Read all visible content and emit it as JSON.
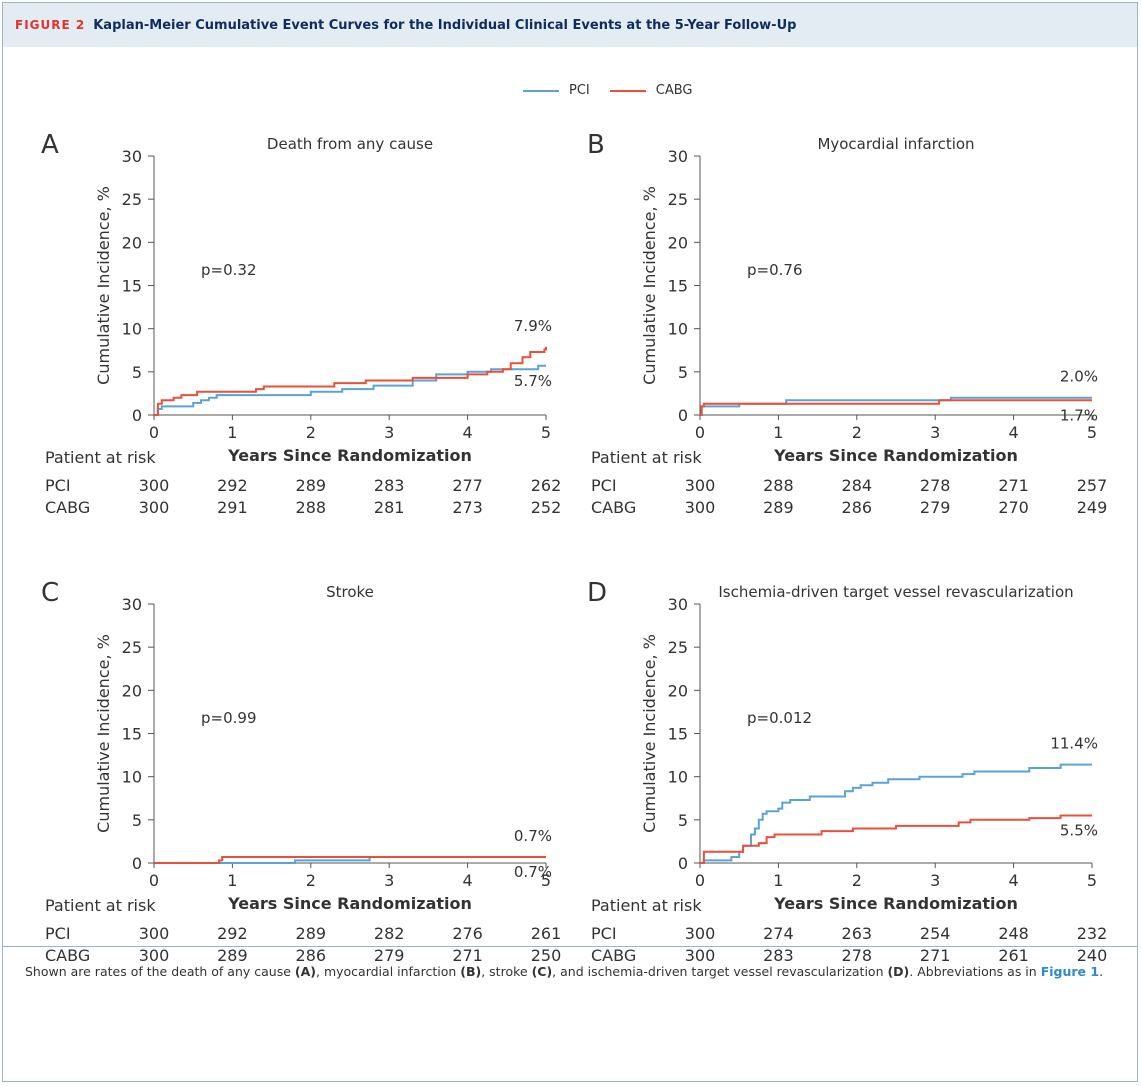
{
  "header": {
    "label": "FIGURE 2",
    "title": "Kaplan-Meier Cumulative Event Curves for the Individual Clinical Events at the 5-Year Follow-Up"
  },
  "legend": [
    {
      "name": "PCI",
      "color": "#5aa3d8"
    },
    {
      "name": "CABG",
      "color": "#e8503a"
    }
  ],
  "colors": {
    "pci": "#5aa3d8",
    "cabg": "#e8503a",
    "axis": "#555555"
  },
  "risk_labels": {
    "heading": "Patient at risk",
    "pci": "PCI",
    "cabg": "CABG"
  },
  "chart_data": [
    {
      "type": "line",
      "letter": "A",
      "title": "Death from any cause",
      "xlabel": "Years Since Randomization",
      "ylabel": "Cumulative Incidence, %",
      "xlim": [
        0,
        5
      ],
      "ylim": [
        0,
        30
      ],
      "xticks": [
        0,
        1,
        2,
        3,
        4,
        5
      ],
      "yticks": [
        0,
        5,
        10,
        15,
        20,
        25,
        30
      ],
      "pvalue": "p=0.32",
      "end_labels": {
        "top": "7.9%",
        "bottom": "5.7%"
      },
      "series": [
        {
          "name": "PCI",
          "points": [
            [
              0,
              0
            ],
            [
              0.05,
              0.7
            ],
            [
              0.1,
              1.0
            ],
            [
              0.45,
              1.0
            ],
            [
              0.5,
              1.4
            ],
            [
              0.6,
              1.7
            ],
            [
              0.7,
              2.0
            ],
            [
              0.8,
              2.3
            ],
            [
              1.1,
              2.3
            ],
            [
              1.5,
              2.3
            ],
            [
              2.0,
              2.7
            ],
            [
              2.4,
              3.0
            ],
            [
              2.8,
              3.4
            ],
            [
              3.3,
              4.0
            ],
            [
              3.6,
              4.7
            ],
            [
              4.0,
              5.0
            ],
            [
              4.3,
              5.3
            ],
            [
              4.5,
              5.3
            ],
            [
              4.9,
              5.7
            ],
            [
              5.0,
              5.7
            ]
          ]
        },
        {
          "name": "CABG",
          "points": [
            [
              0,
              0
            ],
            [
              0.05,
              1.3
            ],
            [
              0.1,
              1.7
            ],
            [
              0.25,
              2.0
            ],
            [
              0.35,
              2.3
            ],
            [
              0.55,
              2.7
            ],
            [
              1.0,
              2.7
            ],
            [
              1.3,
              3.0
            ],
            [
              1.4,
              3.3
            ],
            [
              2.2,
              3.3
            ],
            [
              2.3,
              3.7
            ],
            [
              2.5,
              3.7
            ],
            [
              2.7,
              4.0
            ],
            [
              3.3,
              4.3
            ],
            [
              3.7,
              4.3
            ],
            [
              4.0,
              4.7
            ],
            [
              4.25,
              5.0
            ],
            [
              4.45,
              5.3
            ],
            [
              4.55,
              6.0
            ],
            [
              4.7,
              6.7
            ],
            [
              4.8,
              7.3
            ],
            [
              4.98,
              7.6
            ],
            [
              5.0,
              7.9
            ]
          ]
        }
      ],
      "risk": {
        "pci": [
          300,
          292,
          289,
          283,
          277,
          262
        ],
        "cabg": [
          300,
          291,
          288,
          281,
          273,
          252
        ]
      }
    },
    {
      "type": "line",
      "letter": "B",
      "title": "Myocardial infarction",
      "xlabel": "Years Since Randomization",
      "ylabel": "Cumulative Incidence, %",
      "xlim": [
        0,
        5
      ],
      "ylim": [
        0,
        30
      ],
      "xticks": [
        0,
        1,
        2,
        3,
        4,
        5
      ],
      "yticks": [
        0,
        5,
        10,
        15,
        20,
        25,
        30
      ],
      "pvalue": "p=0.76",
      "end_labels": {
        "top": "2.0%",
        "bottom": "1.7%"
      },
      "series": [
        {
          "name": "PCI",
          "points": [
            [
              0,
              0
            ],
            [
              0.02,
              1.0
            ],
            [
              0.45,
              1.0
            ],
            [
              0.5,
              1.3
            ],
            [
              1.05,
              1.3
            ],
            [
              1.1,
              1.7
            ],
            [
              3.15,
              1.7
            ],
            [
              3.2,
              2.0
            ],
            [
              5.0,
              2.0
            ]
          ]
        },
        {
          "name": "CABG",
          "points": [
            [
              0,
              0
            ],
            [
              0.02,
              1.0
            ],
            [
              0.05,
              1.3
            ],
            [
              3.0,
              1.3
            ],
            [
              3.05,
              1.7
            ],
            [
              5.0,
              1.7
            ]
          ]
        }
      ],
      "risk": {
        "pci": [
          300,
          288,
          284,
          278,
          271,
          257
        ],
        "cabg": [
          300,
          289,
          286,
          279,
          270,
          249
        ]
      }
    },
    {
      "type": "line",
      "letter": "C",
      "title": "Stroke",
      "xlabel": "Years Since Randomization",
      "ylabel": "Cumulative Incidence, %",
      "xlim": [
        0,
        5
      ],
      "ylim": [
        0,
        30
      ],
      "xticks": [
        0,
        1,
        2,
        3,
        4,
        5
      ],
      "yticks": [
        0,
        5,
        10,
        15,
        20,
        25,
        30
      ],
      "pvalue": "p=0.99",
      "end_labels": {
        "top": "0.7%",
        "bottom": "0.7%"
      },
      "series": [
        {
          "name": "PCI",
          "points": [
            [
              0,
              0
            ],
            [
              1.75,
              0
            ],
            [
              1.8,
              0.3
            ],
            [
              2.7,
              0.3
            ],
            [
              2.75,
              0.7
            ],
            [
              5.0,
              0.7
            ]
          ]
        },
        {
          "name": "CABG",
          "points": [
            [
              0,
              0
            ],
            [
              0.8,
              0
            ],
            [
              0.83,
              0.3
            ],
            [
              0.87,
              0.7
            ],
            [
              5.0,
              0.7
            ]
          ]
        }
      ],
      "risk": {
        "pci": [
          300,
          292,
          289,
          282,
          276,
          261
        ],
        "cabg": [
          300,
          289,
          286,
          279,
          271,
          250
        ]
      }
    },
    {
      "type": "line",
      "letter": "D",
      "title": "Ischemia-driven target vessel revascularization",
      "xlabel": "Years Since Randomization",
      "ylabel": "Cumulative Incidence, %",
      "xlim": [
        0,
        5
      ],
      "ylim": [
        0,
        30
      ],
      "xticks": [
        0,
        1,
        2,
        3,
        4,
        5
      ],
      "yticks": [
        0,
        5,
        10,
        15,
        20,
        25,
        30
      ],
      "pvalue": "p=0.012",
      "end_labels": {
        "top": "11.4%",
        "bottom": "5.5%"
      },
      "series": [
        {
          "name": "PCI",
          "points": [
            [
              0,
              0
            ],
            [
              0.05,
              0.3
            ],
            [
              0.3,
              0.3
            ],
            [
              0.4,
              0.7
            ],
            [
              0.5,
              1.3
            ],
            [
              0.55,
              2.0
            ],
            [
              0.65,
              3.3
            ],
            [
              0.7,
              4.0
            ],
            [
              0.75,
              5.0
            ],
            [
              0.8,
              5.7
            ],
            [
              0.85,
              6.0
            ],
            [
              1.0,
              6.3
            ],
            [
              1.05,
              7.0
            ],
            [
              1.15,
              7.3
            ],
            [
              1.4,
              7.7
            ],
            [
              1.8,
              7.7
            ],
            [
              1.85,
              8.3
            ],
            [
              1.95,
              8.7
            ],
            [
              2.05,
              9.0
            ],
            [
              2.2,
              9.3
            ],
            [
              2.4,
              9.7
            ],
            [
              2.6,
              9.7
            ],
            [
              2.8,
              10.0
            ],
            [
              3.2,
              10.0
            ],
            [
              3.35,
              10.3
            ],
            [
              3.5,
              10.6
            ],
            [
              4.0,
              10.6
            ],
            [
              4.2,
              11.0
            ],
            [
              4.5,
              11.0
            ],
            [
              4.6,
              11.4
            ],
            [
              5.0,
              11.4
            ]
          ]
        },
        {
          "name": "CABG",
          "points": [
            [
              0,
              0
            ],
            [
              0.05,
              1.3
            ],
            [
              0.5,
              1.3
            ],
            [
              0.55,
              2.0
            ],
            [
              0.75,
              2.3
            ],
            [
              0.85,
              3.0
            ],
            [
              0.95,
              3.3
            ],
            [
              1.45,
              3.3
            ],
            [
              1.55,
              3.7
            ],
            [
              1.9,
              3.7
            ],
            [
              1.95,
              4.0
            ],
            [
              2.4,
              4.0
            ],
            [
              2.5,
              4.3
            ],
            [
              3.2,
              4.3
            ],
            [
              3.3,
              4.7
            ],
            [
              3.45,
              5.0
            ],
            [
              4.0,
              5.0
            ],
            [
              4.2,
              5.2
            ],
            [
              4.5,
              5.2
            ],
            [
              4.6,
              5.5
            ],
            [
              5.0,
              5.5
            ]
          ]
        }
      ],
      "risk": {
        "pci": [
          300,
          274,
          263,
          254,
          248,
          232
        ],
        "cabg": [
          300,
          283,
          278,
          271,
          261,
          240
        ]
      }
    }
  ],
  "caption": {
    "t1": "Shown are rates of the death of any cause ",
    "a": "(A)",
    "t2": ", myocardial infarction ",
    "b": "(B)",
    "t3": ", stroke ",
    "c": "(C)",
    "t4": ", and ischemia-driven target vessel revascularization ",
    "d": "(D)",
    "t5": ". Abbreviations as in ",
    "link": "Figure 1",
    "t6": "."
  }
}
